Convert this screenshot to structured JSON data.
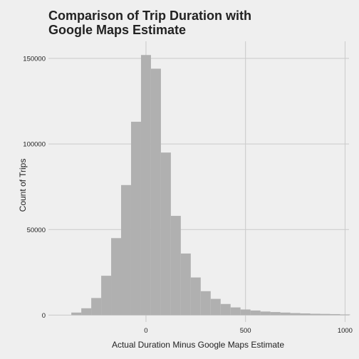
{
  "chart_data": {
    "type": "bar",
    "title": "Comparison of Trip Duration with Google Maps Estimate",
    "title_lines": [
      "Comparison of Trip Duration with",
      "Google Maps Estimate"
    ],
    "xlabel": "Actual Duration Minus Google Maps Estimate",
    "ylabel": "Count of Trips",
    "xlim": [
      -490,
      1020
    ],
    "ylim": [
      -4000,
      160000
    ],
    "x_ticks": [
      0,
      500,
      1000
    ],
    "y_ticks": [
      0,
      50000,
      100000,
      150000
    ],
    "x_tick_labels": [
      "0",
      "500",
      "1000"
    ],
    "y_tick_labels": [
      "0",
      "50000",
      "100000",
      "150000"
    ],
    "bin_width": 50,
    "bin_edges": [
      -375,
      -325,
      -275,
      -225,
      -175,
      -125,
      -75,
      -25,
      25,
      75,
      125,
      175,
      225,
      275,
      325,
      375,
      425,
      475,
      525,
      575,
      625,
      675,
      725,
      775,
      825,
      875,
      925,
      975,
      1025
    ],
    "values": [
      1500,
      4000,
      10000,
      23000,
      45000,
      76000,
      113000,
      152000,
      144000,
      95000,
      58000,
      36000,
      22000,
      14000,
      9500,
      6500,
      4500,
      3300,
      2700,
      2100,
      1800,
      1500,
      1200,
      1000,
      800,
      700,
      600,
      400
    ],
    "grid": true,
    "legend": "none",
    "colors": {
      "background": "#efefef",
      "bar": "#b0b0b0",
      "grid": "#cacaca",
      "text": "#222222"
    }
  }
}
